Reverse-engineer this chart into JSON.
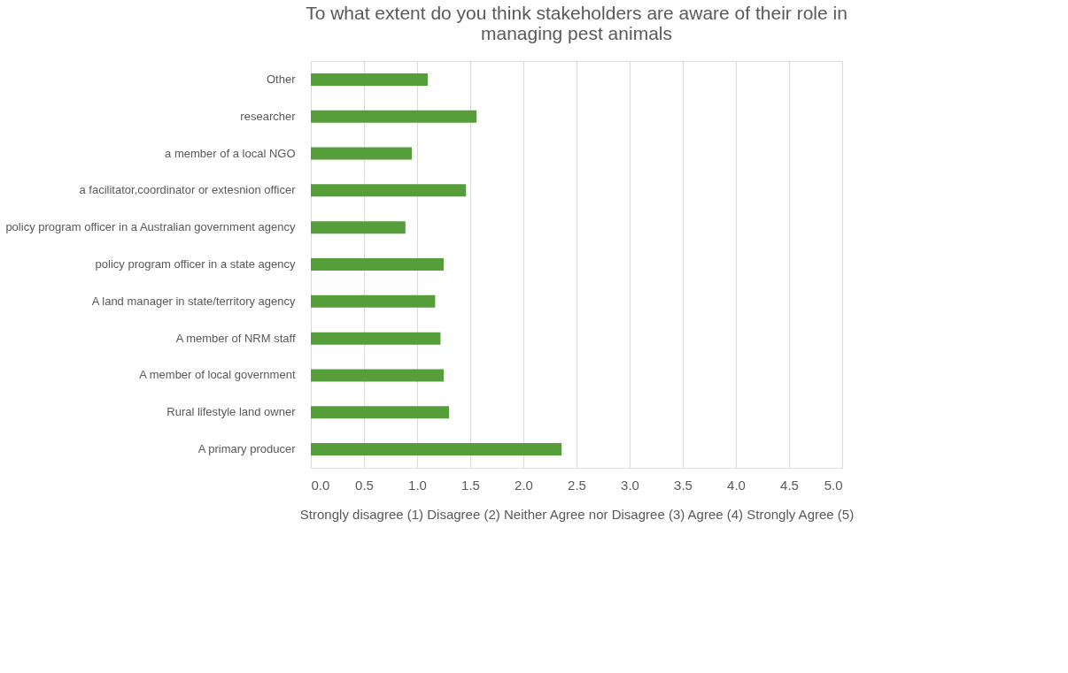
{
  "chart_data": {
    "type": "bar",
    "orientation": "horizontal",
    "title": "To what extent do you think stakeholders are aware of their role in managing pest animals",
    "xlabel": "Strongly disagree (1)   Disagree (2)   Neither Agree nor Disagree (3)   Agree (4)  Strongly Agree (5)",
    "categories": [
      "Other",
      "researcher",
      "a member of a local NGO",
      "a facilitator,coordinator or extesnion officer",
      "policy program officer in a Australian government agency",
      "policy program officer in a state agency",
      "A land manager in state/territory agency",
      "A member of NRM staff",
      "A member of local government",
      "Rural lifestyle land owner",
      "A primary producer"
    ],
    "values": [
      1.1,
      1.56,
      0.95,
      1.46,
      0.89,
      1.25,
      1.17,
      1.22,
      1.25,
      1.3,
      2.36
    ],
    "color": "#559e3a",
    "xlim": [
      0,
      5
    ],
    "xticks": [
      {
        "value": 0,
        "label": "0.0"
      },
      {
        "value": 0.5,
        "label": "0.5"
      },
      {
        "value": 1,
        "label": "1.0"
      },
      {
        "value": 1.5,
        "label": "1.5"
      },
      {
        "value": 2,
        "label": "2.0"
      },
      {
        "value": 2.5,
        "label": "2.5"
      },
      {
        "value": 3,
        "label": "3.0"
      },
      {
        "value": 3.5,
        "label": "3.5"
      },
      {
        "value": 4,
        "label": "4.0"
      },
      {
        "value": 4.5,
        "label": "4.5"
      },
      {
        "value": 5,
        "label": "5.0"
      }
    ],
    "grid": "x"
  }
}
